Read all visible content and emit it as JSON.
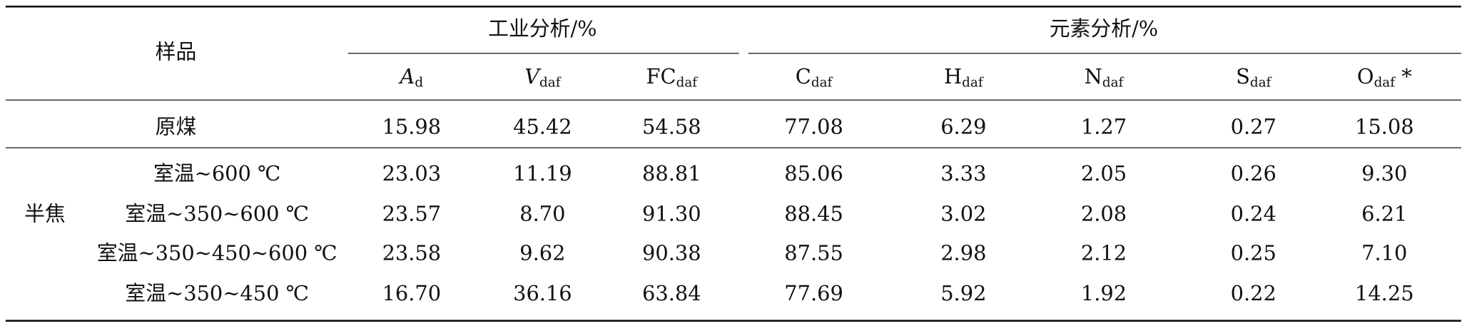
{
  "table": {
    "header": {
      "sample": "样品",
      "groups": [
        {
          "title": "工业分析/%",
          "columns": [
            {
              "main": "A",
              "sub": "d",
              "italic": true
            },
            {
              "main": "V",
              "sub": "daf",
              "italic": true
            },
            {
              "main": "FC",
              "sub": "daf"
            }
          ]
        },
        {
          "title": "元素分析/%",
          "columns": [
            {
              "main": "C",
              "sub": "daf"
            },
            {
              "main": "H",
              "sub": "daf"
            },
            {
              "main": "N",
              "sub": "daf"
            },
            {
              "main": "S",
              "sub": "daf"
            },
            {
              "main": "O",
              "sub": "daf",
              "suffix": " *"
            }
          ]
        }
      ]
    },
    "raw": {
      "label": "原煤",
      "values": [
        "15.98",
        "45.42",
        "54.58",
        "77.08",
        "6.29",
        "1.27",
        "0.27",
        "15.08"
      ]
    },
    "semi": {
      "label": "半焦",
      "rows": [
        {
          "label": "室温~600 ℃",
          "values": [
            "23.03",
            "11.19",
            "88.81",
            "85.06",
            "3.33",
            "2.05",
            "0.26",
            "9.30"
          ]
        },
        {
          "label": "室温~350~600 ℃",
          "values": [
            "23.57",
            "8.70",
            "91.30",
            "88.45",
            "3.02",
            "2.08",
            "0.24",
            "6.21"
          ]
        },
        {
          "label": "室温~350~450~600 ℃",
          "values": [
            "23.58",
            "9.62",
            "90.38",
            "87.55",
            "2.98",
            "2.12",
            "0.25",
            "7.10"
          ]
        },
        {
          "label": "室温~350~450 ℃",
          "values": [
            "16.70",
            "36.16",
            "63.84",
            "77.69",
            "5.92",
            "1.92",
            "0.22",
            "14.25"
          ]
        }
      ]
    }
  }
}
